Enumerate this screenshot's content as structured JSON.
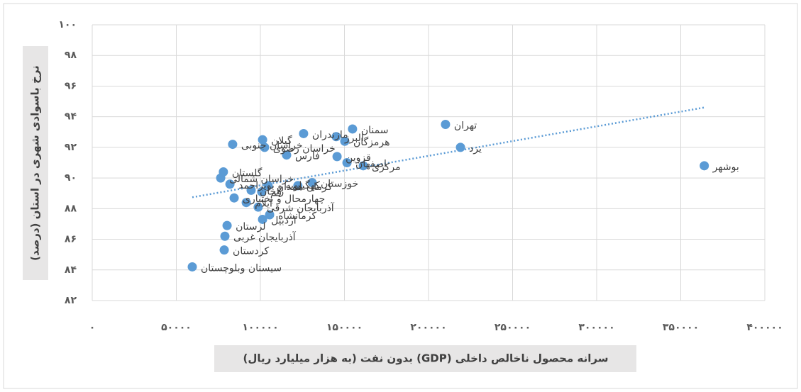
{
  "chart_data": {
    "type": "scatter",
    "x_label": "سرانه محصول ناخالص داخلی (GDP) بدون نفت (به هزار میلیارد ریال)",
    "y_label": "نرخ باسوادی شهری در استان (درصد)",
    "point_labels": [
      "بوشهر",
      "تهران",
      "یزد",
      "سمنان",
      "مازندران",
      "هرمزگان",
      "البرز",
      "گیلان",
      "خراسان رضوی",
      "خراسان جنوبی",
      "فارس",
      "قزوین",
      "اصفهان",
      "مرکزی",
      "گلستان",
      "خراسان شمالی",
      "کهگیلویه و بویراحمد",
      "خوزستان",
      "کرمان",
      "همدان",
      "زنجان",
      "قم",
      "چهارمحال و بختیاری",
      "ایلام",
      "آذربایجان شرقی",
      "کرمانشاه",
      "اردبیل",
      "لرستان",
      "آذربایجان غربی",
      "کردستان",
      "سیستان وبلوچستان"
    ],
    "x": [
      364000,
      210100,
      219000,
      154800,
      125700,
      150200,
      145100,
      101300,
      102500,
      83500,
      115600,
      145600,
      151500,
      161200,
      78000,
      76400,
      81900,
      130800,
      122300,
      104600,
      94500,
      100800,
      84400,
      91600,
      98700,
      105500,
      101300,
      80200,
      78900,
      78500,
      59500
    ],
    "values": [
      90.8,
      93.5,
      92.0,
      93.2,
      92.9,
      92.4,
      92.7,
      92.5,
      92.0,
      92.2,
      91.5,
      91.4,
      91.0,
      90.8,
      90.4,
      90.0,
      89.6,
      89.7,
      89.5,
      89.5,
      89.2,
      89.1,
      88.7,
      88.4,
      88.1,
      87.6,
      87.3,
      86.9,
      86.2,
      85.3,
      84.2
    ],
    "color": "#5b9bd5",
    "trendline": true,
    "grid": true,
    "xlim": [
      0,
      400000
    ],
    "xticks": [
      {
        "value": 0,
        "label": "۰"
      },
      {
        "value": 50000,
        "label": "۵۰۰۰۰"
      },
      {
        "value": 100000,
        "label": "۱۰۰۰۰۰"
      },
      {
        "value": 150000,
        "label": "۱۵۰۰۰۰"
      },
      {
        "value": 200000,
        "label": "۲۰۰۰۰۰"
      },
      {
        "value": 250000,
        "label": "۲۵۰۰۰۰"
      },
      {
        "value": 300000,
        "label": "۳۰۰۰۰۰"
      },
      {
        "value": 350000,
        "label": "۳۵۰۰۰۰"
      },
      {
        "value": 400000,
        "label": "۴۰۰۰۰۰"
      }
    ],
    "ylim": [
      82,
      100
    ],
    "yticks": [
      {
        "value": 82,
        "label": "۸۲"
      },
      {
        "value": 84,
        "label": "۸۴"
      },
      {
        "value": 86,
        "label": "۸۶"
      },
      {
        "value": 88,
        "label": "۸۸"
      },
      {
        "value": 90,
        "label": "۹۰"
      },
      {
        "value": 92,
        "label": "۹۲"
      },
      {
        "value": 94,
        "label": "۹۴"
      },
      {
        "value": 96,
        "label": "۹۶"
      },
      {
        "value": 98,
        "label": "۹۸"
      },
      {
        "value": 100,
        "label": "۱۰۰"
      }
    ]
  }
}
